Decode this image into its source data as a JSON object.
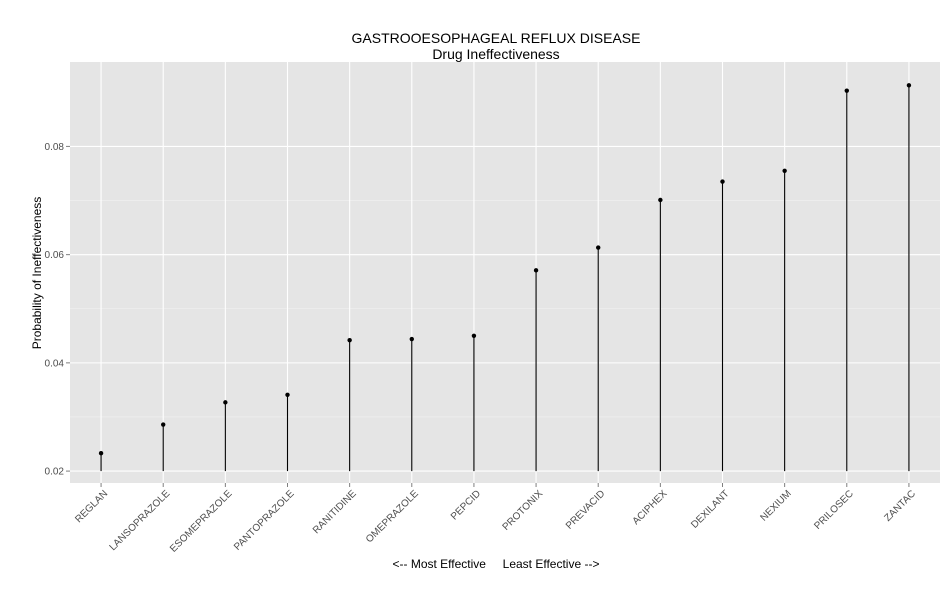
{
  "chart_data": {
    "type": "scatter",
    "title": "GASTROOESOPHAGEAL REFLUX DISEASE",
    "subtitle": "Drug Ineffectiveness",
    "xlabel": "<-- Most Effective     Least Effective -->",
    "ylabel": "Probability of Ineffectiveness",
    "categories": [
      "REGLAN",
      "LANSOPRAZOLE",
      "ESOMEPRAZOLE",
      "PANTOPRAZOLE",
      "RANITIDINE",
      "OMEPRAZOLE",
      "PEPCID",
      "PROTONIX",
      "PREVACID",
      "ACIPHEX",
      "DEXILANT",
      "NEXIUM",
      "PRILOSEC",
      "ZANTAC"
    ],
    "values": [
      0.0233,
      0.0286,
      0.0327,
      0.0341,
      0.0442,
      0.0444,
      0.045,
      0.0571,
      0.0613,
      0.0701,
      0.0735,
      0.0755,
      0.0903,
      0.0913
    ],
    "baseline": 0.02,
    "ylim": [
      0.0178,
      0.0956
    ],
    "yticks": [
      0.02,
      0.04,
      0.06,
      0.08
    ],
    "ytick_labels": [
      "0.02",
      "0.04",
      "0.06",
      "0.08"
    ],
    "grid": true,
    "colors": {
      "panel": "#e5e5e5",
      "grid_major": "#ffffff",
      "grid_minor": "#f2f2f2",
      "mark": "#000000"
    }
  }
}
